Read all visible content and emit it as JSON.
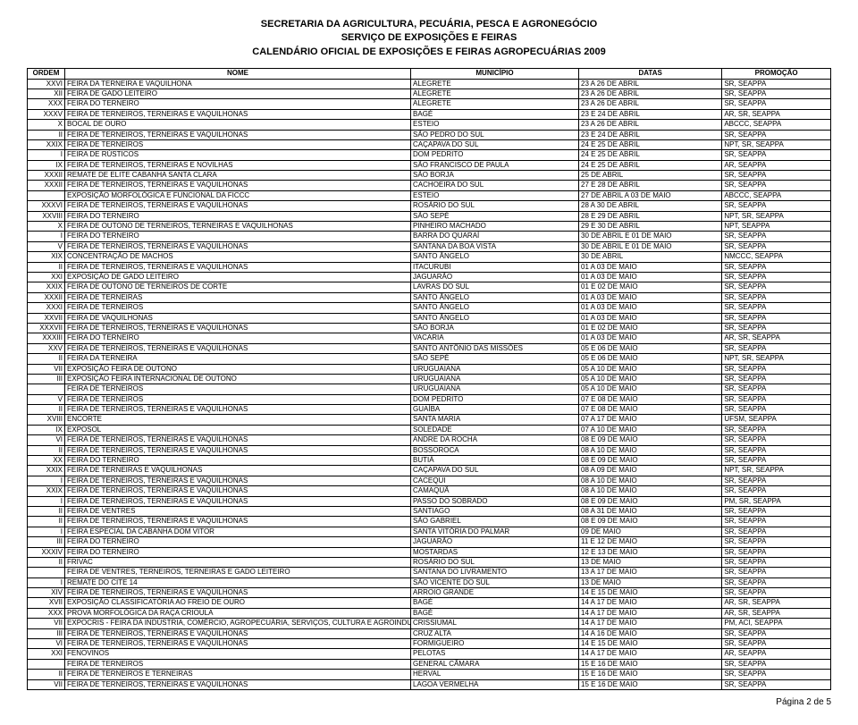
{
  "header": {
    "line1": "SECRETARIA DA AGRICULTURA, PECUÁRIA, PESCA E AGRONEGÓCIO",
    "line2": "SERVIÇO DE EXPOSIÇÕES E FEIRAS",
    "line3": "CALENDÁRIO OFICIAL DE EXPOSIÇÕES E FEIRAS AGROPECUÁRIAS 2009"
  },
  "columns": {
    "ordem": "ORDEM",
    "nome": "NOME",
    "municipio": "MUNICÍPIO",
    "datas": "DATAS",
    "promocao": "PROMOÇÃO"
  },
  "rows": [
    {
      "ordem": "XXVI",
      "nome": "FEIRA DA TERNEIRA E VAQUILHONA",
      "municipio": "ALEGRETE",
      "datas": "23 A 26 DE ABRIL",
      "promocao": "SR, SEAPPA"
    },
    {
      "ordem": "XII",
      "nome": "FEIRA DE GADO LEITEIRO",
      "municipio": "ALEGRETE",
      "datas": "23 A 26 DE ABRIL",
      "promocao": "SR, SEAPPA"
    },
    {
      "ordem": "XXX",
      "nome": "FEIRA DO TERNEIRO",
      "municipio": "ALEGRETE",
      "datas": "23 A 26 DE ABRIL",
      "promocao": "SR, SEAPPA"
    },
    {
      "ordem": "XXXV",
      "nome": "FEIRA DE TERNEIROS, TERNEIRAS E VAQUILHONAS",
      "municipio": "BAGÉ",
      "datas": "23 E 24 DE ABRIL",
      "promocao": "AR, SR, SEAPPA"
    },
    {
      "ordem": "X",
      "nome": "BOCAL DE OURO",
      "municipio": "ESTEIO",
      "datas": "23 A 26 DE ABRIL",
      "promocao": "ABCCC, SEAPPA"
    },
    {
      "ordem": "II",
      "nome": "FEIRA DE TERNEIROS, TERNEIRAS E VAQUILHONAS",
      "municipio": "SÃO PEDRO DO SUL",
      "datas": "23 E 24 DE ABRIL",
      "promocao": "SR, SEAPPA"
    },
    {
      "ordem": "XXIX",
      "nome": "FEIRA DE TERNEIROS",
      "municipio": "CAÇAPAVA DO SUL",
      "datas": "24 E 25 DE ABRIL",
      "promocao": "NPT, SR, SEAPPA"
    },
    {
      "ordem": "I",
      "nome": "FEIRA DE RÚSTICOS",
      "municipio": "DOM PEDRITO",
      "datas": "24 E 25 DE ABRIL",
      "promocao": "SR, SEAPPA"
    },
    {
      "ordem": "IX",
      "nome": "FEIRA DE TERNEIROS, TERNEIRAS E NOVILHAS",
      "municipio": "SÃO FRANCISCO DE PAULA",
      "datas": "24 E 25 DE ABRIL",
      "promocao": "AR, SEAPPA"
    },
    {
      "ordem": "XXXII",
      "nome": "REMATE DE ELITE CABANHA SANTA CLARA",
      "municipio": "SÃO BORJA",
      "datas": "25 DE ABRIL",
      "promocao": "SR, SEAPPA"
    },
    {
      "ordem": "XXXII",
      "nome": "FEIRA DE TERNEIROS, TERNEIRAS E VAQUILHONAS",
      "municipio": "CACHOEIRA DO SUL",
      "datas": "27 E 28 DE ABRIL",
      "promocao": "SR, SEAPPA"
    },
    {
      "ordem": "",
      "nome": "EXPOSIÇÃO MORFOLÓGICA E FUNCIONAL DA FICCC",
      "municipio": "ESTEIO",
      "datas": "27 DE ABRIL A 03 DE MAIO",
      "promocao": "ABCCC, SEAPPA"
    },
    {
      "ordem": "XXXVI",
      "nome": "FEIRA DE TERNEIROS, TERNEIRAS E VAQUILHONAS",
      "municipio": "ROSÁRIO DO SUL",
      "datas": "28 A 30 DE ABRIL",
      "promocao": "SR, SEAPPA"
    },
    {
      "ordem": "XXVIII",
      "nome": "FEIRA DO TERNEIRO",
      "municipio": "SÃO SEPÉ",
      "datas": "28 E 29 DE ABRIL",
      "promocao": "NPT, SR, SEAPPA"
    },
    {
      "ordem": "X",
      "nome": "FEIRA DE OUTONO DE TERNEIROS, TERNEIRAS E VAQUILHONAS",
      "municipio": "PINHEIRO MACHADO",
      "datas": "29 E 30 DE ABRIL",
      "promocao": "NPT, SEAPPA"
    },
    {
      "ordem": "I",
      "nome": "FEIRA DO TERNEIRO",
      "municipio": "BARRA DO QUARAÍ",
      "datas": "30 DE ABRIL E 01 DE MAIO",
      "promocao": "SR, SEAPPA"
    },
    {
      "ordem": "V",
      "nome": "FEIRA DE TERNEIROS, TERNEIRAS E VAQUILHONAS",
      "municipio": "SANTANA DA BOA VISTA",
      "datas": "30 DE ABRIL E 01 DE MAIO",
      "promocao": "SR, SEAPPA"
    },
    {
      "ordem": "XIX",
      "nome": "CONCENTRAÇÃO DE MACHOS",
      "municipio": "SANTO ÂNGELO",
      "datas": "30 DE ABRIL",
      "promocao": "NMCCC, SEAPPA"
    },
    {
      "ordem": "II",
      "nome": "FEIRA DE TERNEIROS, TERNEIRAS E VAQUILHONAS",
      "municipio": "ITACURUBI",
      "datas": "01 A 03 DE MAIO",
      "promocao": "SR, SEAPPA"
    },
    {
      "ordem": "XXI",
      "nome": "EXPOSIÇÃO DE GADO LEITEIRO",
      "municipio": "JAGUARÃO",
      "datas": "01 A 03 DE MAIO",
      "promocao": "SR, SEAPPA"
    },
    {
      "ordem": "XXIX",
      "nome": "FEIRA DE OUTONO DE TERNEIROS DE CORTE",
      "municipio": "LAVRAS DO SUL",
      "datas": "01 E 02 DE MAIO",
      "promocao": "SR, SEAPPA"
    },
    {
      "ordem": "XXXII",
      "nome": "FEIRA DE TERNEIRAS",
      "municipio": "SANTO ÂNGELO",
      "datas": "01 A 03 DE MAIO",
      "promocao": "SR, SEAPPA"
    },
    {
      "ordem": "XXXI",
      "nome": "FEIRA DE TERNEIROS",
      "municipio": "SANTO ÂNGELO",
      "datas": "01 A 03 DE MAIO",
      "promocao": "SR, SEAPPA"
    },
    {
      "ordem": "XXVII",
      "nome": "FEIRA DE VAQUILHONAS",
      "municipio": "SANTO ÂNGELO",
      "datas": "01 A 03 DE MAIO",
      "promocao": "SR, SEAPPA"
    },
    {
      "ordem": "XXXVII",
      "nome": "FEIRA DE TERNEIROS, TERNEIRAS E VAQUILHONAS",
      "municipio": "SÃO BORJA",
      "datas": "01 E 02 DE MAIO",
      "promocao": "SR, SEAPPA"
    },
    {
      "ordem": "XXXIII",
      "nome": "FEIRA DO TERNEIRO",
      "municipio": "VACARIA",
      "datas": "01 A 03 DE MAIO",
      "promocao": "AR, SR, SEAPPA"
    },
    {
      "ordem": "XXV",
      "nome": "FEIRA DE TERNEIROS, TERNEIRAS E VAQUILHONAS",
      "municipio": "SANTO ANTÔNIO DAS MISSÕES",
      "datas": "05 E 06 DE MAIO",
      "promocao": "SR, SEAPPA"
    },
    {
      "ordem": "II",
      "nome": "FEIRA DA TERNEIRA",
      "municipio": "SÃO SEPÉ",
      "datas": "05 E 06 DE MAIO",
      "promocao": "NPT, SR, SEAPPA"
    },
    {
      "ordem": "VII",
      "nome": "EXPOSIÇÃO FEIRA DE OUTONO",
      "municipio": "URUGUAIANA",
      "datas": "05 A 10 DE MAIO",
      "promocao": "SR, SEAPPA"
    },
    {
      "ordem": "III",
      "nome": "EXPOSIÇÃO FEIRA INTERNACIONAL DE OUTONO",
      "municipio": "URUGUAIANA",
      "datas": "05 A 10 DE MAIO",
      "promocao": "SR, SEAPPA"
    },
    {
      "ordem": "",
      "nome": "FEIRA DE TERNEIROS",
      "municipio": "URUGUAIANA",
      "datas": "05 A 10 DE MAIO",
      "promocao": "SR, SEAPPA"
    },
    {
      "ordem": "V",
      "nome": "FEIRA DE TERNEIROS",
      "municipio": "DOM PEDRITO",
      "datas": "07 E 08 DE MAIO",
      "promocao": "SR, SEAPPA"
    },
    {
      "ordem": "II",
      "nome": "FEIRA DE TERNEIROS, TERNEIRAS E VAQUILHONAS",
      "municipio": "GUAÍBA",
      "datas": "07 E 08 DE MAIO",
      "promocao": "SR, SEAPPA"
    },
    {
      "ordem": "XVIII",
      "nome": "ENCORTE",
      "municipio": "SANTA MARIA",
      "datas": "07 A 17 DE MAIO",
      "promocao": "UFSM, SEAPPA"
    },
    {
      "ordem": "IX",
      "nome": "EXPOSOL",
      "municipio": "SOLEDADE",
      "datas": "07 A 10 DE MAIO",
      "promocao": "SR, SEAPPA"
    },
    {
      "ordem": "VI",
      "nome": "FEIRA DE TERNEIROS, TERNEIRAS E VAQUILHONAS",
      "municipio": "ANDRE DA ROCHA",
      "datas": "08 E 09 DE MAIO",
      "promocao": "SR, SEAPPA"
    },
    {
      "ordem": "II",
      "nome": "FEIRA DE TERNEIROS, TERNEIRAS E VAQUILHONAS",
      "municipio": "BOSSOROCA",
      "datas": "08 A 10 DE MAIO",
      "promocao": "SR, SEAPPA"
    },
    {
      "ordem": "XX",
      "nome": "FEIRA DO TERNEIRO",
      "municipio": "BUTIÁ",
      "datas": "08 E 09 DE MAIO",
      "promocao": "SR, SEAPPA"
    },
    {
      "ordem": "XXIX",
      "nome": "FEIRA DE TERNEIRAS E VAQUILHONAS",
      "municipio": "CAÇAPAVA DO SUL",
      "datas": "08 A 09 DE MAIO",
      "promocao": "NPT, SR, SEAPPA"
    },
    {
      "ordem": "I",
      "nome": "FEIRA DE TERNEIROS, TERNEIRAS E VAQUILHONAS",
      "municipio": "CACEQUI",
      "datas": "08 A 10 DE MAIO",
      "promocao": "SR, SEAPPA"
    },
    {
      "ordem": "XXIX",
      "nome": "FEIRA DE TERNEIROS, TERNEIRAS E VAQUILHONAS",
      "municipio": "CAMAQUÃ",
      "datas": "08 A 10 DE MAIO",
      "promocao": "SR, SEAPPA"
    },
    {
      "ordem": "I",
      "nome": "FEIRA DE TERNEIROS, TERNEIRAS E VAQUILHONAS",
      "municipio": "PASSO DO SOBRADO",
      "datas": "08 E 09 DE MAIO",
      "promocao": "PM, SR, SEAPPA"
    },
    {
      "ordem": "II",
      "nome": "FEIRA DE VENTRES",
      "municipio": "SANTIAGO",
      "datas": "08 A 31 DE MAIO",
      "promocao": "SR, SEAPPA"
    },
    {
      "ordem": "II",
      "nome": "FEIRA DE TERNEIROS, TERNEIRAS E VAQUILHONAS",
      "municipio": "SÃO GABRIEL",
      "datas": "08 E 09 DE MAIO",
      "promocao": "SR, SEAPPA"
    },
    {
      "ordem": "I",
      "nome": "FEIRA ESPECIAL DA CABANHA DOM VITOR",
      "municipio": "SANTA VITÓRIA DO PALMAR",
      "datas": "09 DE MAIO",
      "promocao": "SR, SEAPPA"
    },
    {
      "ordem": "III",
      "nome": "FEIRA DO TERNEIRO",
      "municipio": "JAGUARÃO",
      "datas": "11 E 12 DE MAIO",
      "promocao": "SR, SEAPPA"
    },
    {
      "ordem": "XXXIV",
      "nome": "FEIRA DO TERNEIRO",
      "municipio": "MOSTARDAS",
      "datas": "12 E 13 DE MAIO",
      "promocao": "SR, SEAPPA"
    },
    {
      "ordem": "II",
      "nome": "FRIVAC",
      "municipio": "ROSÁRIO DO SUL",
      "datas": "13 DE MAIO",
      "promocao": "SR, SEAPPA"
    },
    {
      "ordem": "",
      "nome": "FEIRA DE VENTRES, TERNEIROS, TERNEIRAS E GADO LEITEIRO",
      "municipio": "SANTANA DO LIVRAMENTO",
      "datas": "13 A 17 DE MAIO",
      "promocao": "SR, SEAPPA"
    },
    {
      "ordem": "I",
      "nome": "REMATE DO CITE 14",
      "municipio": "SÃO VICENTE DO SUL",
      "datas": "13 DE MAIO",
      "promocao": "SR, SEAPPA"
    },
    {
      "ordem": "XIV",
      "nome": "FEIRA DE TERNEIROS, TERNEIRAS E VAQUILHONAS",
      "municipio": "ARROIO GRANDE",
      "datas": "14 E 15 DE MAIO",
      "promocao": "SR, SEAPPA"
    },
    {
      "ordem": "XVII",
      "nome": "EXPOSIÇÃO CLASSIFICATÓRIA AO FREIO DE OURO",
      "municipio": "BAGÉ",
      "datas": "14 A 17 DE MAIO",
      "promocao": "AR, SR, SEAPPA"
    },
    {
      "ordem": "XXX",
      "nome": "PROVA MORFOLÓGICA DA RAÇA CRIOULA",
      "municipio": "BAGÉ",
      "datas": "14 A 17 DE MAIO",
      "promocao": "AR, SR, SEAPPA"
    },
    {
      "ordem": "VII",
      "nome": "EXPOCRIS - FEIRA DA INDÚSTRIA, COMÉRCIO, AGROPECUÁRIA, SERVIÇOS, CULTURA E AGROINDUSTRIAL",
      "municipio": "CRISSIUMAL",
      "datas": "14 A 17 DE MAIO",
      "promocao": "PM, ACI, SEAPPA"
    },
    {
      "ordem": "III",
      "nome": "FEIRA DE TERNEIROS, TERNEIRAS E VAQUILHONAS",
      "municipio": "CRUZ ALTA",
      "datas": "14 A 16 DE MAIO",
      "promocao": "SR, SEAPPA"
    },
    {
      "ordem": "VI",
      "nome": "FEIRA DE TERNEIROS, TERNEIRAS E VAQUILHONAS",
      "municipio": "FORMIGUEIRO",
      "datas": "14 E 15 DE MAIO",
      "promocao": "SR, SEAPPA"
    },
    {
      "ordem": "XXI",
      "nome": "FENOVINOS",
      "municipio": "PELOTAS",
      "datas": "14 A 17 DE MAIO",
      "promocao": "AR, SEAPPA"
    },
    {
      "ordem": "",
      "nome": "FEIRA DE TERNEIROS",
      "municipio": "GENERAL CÂMARA",
      "datas": "15 E 16 DE MAIO",
      "promocao": "SR, SEAPPA"
    },
    {
      "ordem": "II",
      "nome": "FEIRA DE TERNEIROS E TERNEIRAS",
      "municipio": "HERVAL",
      "datas": "15 E 16 DE MAIO",
      "promocao": "SR, SEAPPA"
    },
    {
      "ordem": "VII",
      "nome": "FEIRA DE TERNEIROS, TERNEIRAS E VAQUILHONAS",
      "municipio": "LAGOA VERMELHA",
      "datas": "15 E 16 DE MAIO",
      "promocao": "SR, SEAPPA"
    }
  ],
  "footer": "Página 2 de 5"
}
